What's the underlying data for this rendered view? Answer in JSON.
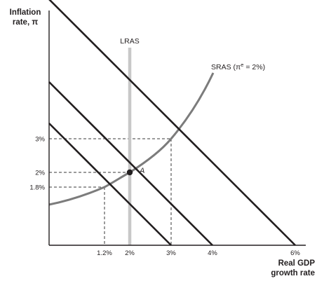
{
  "axes": {
    "y_label_line1": "Inflation",
    "y_label_line2": "rate, π",
    "x_label_line1": "Real GDP",
    "x_label_line2": "growth rate"
  },
  "ticks": {
    "y": [
      {
        "value": 3,
        "label": "3%"
      },
      {
        "value": 2,
        "label": "2%"
      },
      {
        "value": 1.8,
        "label": "1.8%"
      }
    ],
    "x": [
      {
        "value": 1.2,
        "label": "1.2%"
      },
      {
        "value": 2,
        "label": "2%"
      },
      {
        "value": 3,
        "label": "3%"
      },
      {
        "value": 4,
        "label": "4%"
      },
      {
        "value": 6,
        "label": "6%"
      }
    ]
  },
  "curves": {
    "lras_label": "LRAS",
    "lras_value": 2,
    "sras_label": "SRAS (πe = 2%)",
    "ad_lines": [
      {
        "x_intercept": 3
      },
      {
        "x_intercept": 4
      },
      {
        "x_intercept": 6
      }
    ]
  },
  "point_a": {
    "label": "A",
    "x": 2,
    "y": 2
  },
  "colors": {
    "ink": "#231f20",
    "lras": "#c8c8c8",
    "sras": "#7c7c7c",
    "guides": "#3a3a3a"
  }
}
